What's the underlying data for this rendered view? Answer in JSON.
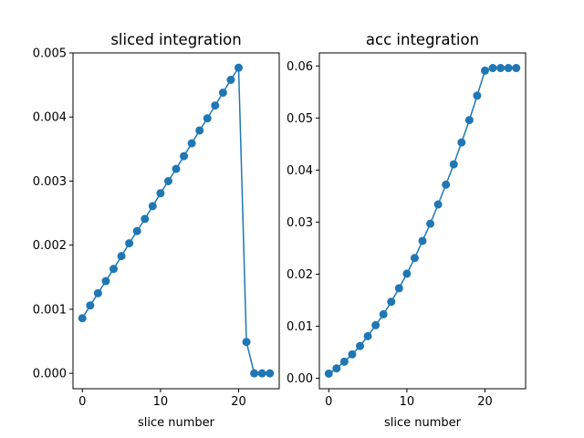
{
  "chart_data": [
    {
      "type": "line",
      "title": "sliced integration",
      "xlabel": "slice number",
      "ylabel": "",
      "xlim": [
        -1.2,
        25.2
      ],
      "ylim": [
        -0.00024,
        0.005
      ],
      "xticks": [
        0,
        10,
        20
      ],
      "yticks": [
        0.0,
        0.001,
        0.002,
        0.003,
        0.004,
        0.005
      ],
      "yticklabels": [
        "0.000",
        "0.001",
        "0.002",
        "0.003",
        "0.004",
        "0.005"
      ],
      "grid": false,
      "marker": "circle",
      "color": "#1f77b4",
      "x": [
        0,
        1,
        2,
        3,
        4,
        5,
        6,
        7,
        8,
        9,
        10,
        11,
        12,
        13,
        14,
        15,
        16,
        17,
        18,
        19,
        20,
        21,
        22,
        23,
        24
      ],
      "y": [
        0.00086,
        0.00106,
        0.00125,
        0.00144,
        0.00163,
        0.00183,
        0.00203,
        0.00222,
        0.00241,
        0.00261,
        0.00281,
        0.003,
        0.00319,
        0.00339,
        0.00359,
        0.00379,
        0.00398,
        0.00418,
        0.00438,
        0.00458,
        0.00477,
        0.00049,
        0.0,
        0.0,
        0.0
      ]
    },
    {
      "type": "line",
      "title": "acc integration",
      "xlabel": "slice number",
      "ylabel": "",
      "xlim": [
        -1.2,
        25.2
      ],
      "ylim": [
        -0.002,
        0.0625
      ],
      "xticks": [
        0,
        10,
        20
      ],
      "yticks": [
        0.0,
        0.01,
        0.02,
        0.03,
        0.04,
        0.05,
        0.06
      ],
      "yticklabels": [
        "0.00",
        "0.01",
        "0.02",
        "0.03",
        "0.04",
        "0.05",
        "0.06"
      ],
      "grid": false,
      "marker": "circle",
      "color": "#1f77b4",
      "x": [
        0,
        1,
        2,
        3,
        4,
        5,
        6,
        7,
        8,
        9,
        10,
        11,
        12,
        13,
        14,
        15,
        16,
        17,
        18,
        19,
        20,
        21,
        22,
        23,
        24
      ],
      "y": [
        0.0009,
        0.0019,
        0.0032,
        0.0046,
        0.0062,
        0.0081,
        0.0102,
        0.0123,
        0.0147,
        0.0173,
        0.0201,
        0.0231,
        0.0264,
        0.0297,
        0.0334,
        0.0372,
        0.0411,
        0.0453,
        0.0496,
        0.0543,
        0.0591,
        0.0596,
        0.0596,
        0.0596,
        0.0596
      ]
    }
  ]
}
